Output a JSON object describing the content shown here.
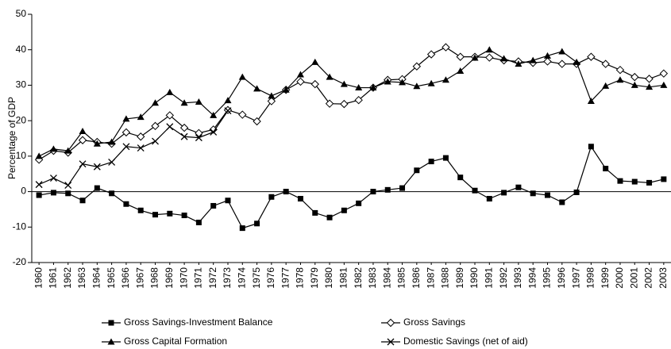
{
  "chart_data": {
    "type": "line",
    "y_label": "Percentage of GDP",
    "categories": [
      "1960",
      "1961",
      "1962",
      "1963",
      "1964",
      "1965",
      "1966",
      "1967",
      "1968",
      "1969",
      "1970",
      "1971",
      "1972",
      "1973",
      "1974",
      "1975",
      "1976",
      "1977",
      "1978",
      "1979",
      "1980",
      "1981",
      "1982",
      "1983",
      "1984",
      "1985",
      "1986",
      "1987",
      "1988",
      "1989",
      "1990",
      "1991",
      "1992",
      "1993",
      "1994",
      "1995",
      "1996",
      "1997",
      "1998",
      "1999",
      "2000",
      "2001",
      "2002",
      "2003"
    ],
    "series": [
      {
        "name": "Gross Savings-Investment Balance",
        "color": "#000000",
        "marker": "square",
        "values": [
          -1,
          -0.3,
          -0.5,
          -2.5,
          1,
          -0.5,
          -3.5,
          -5.3,
          -6.5,
          -6.2,
          -6.7,
          -8.7,
          -4,
          -2.5,
          -10.3,
          -9,
          -1.5,
          0,
          -2,
          -6,
          -7.3,
          -5.3,
          -3.3,
          0,
          0.5,
          1,
          6,
          8.5,
          9.5,
          4,
          0.3,
          -2,
          -0.3,
          1.2,
          -0.5,
          -1,
          -3,
          -0.2,
          12.7,
          6.5,
          3,
          2.8,
          2.5,
          3.5
        ]
      },
      {
        "name": "Gross Savings",
        "color": "#000000",
        "marker": "diamond",
        "values": [
          9,
          11.5,
          11,
          14.5,
          14,
          13.5,
          16.7,
          15.5,
          18.5,
          21.5,
          18,
          16.5,
          17.5,
          23,
          21.7,
          19.8,
          25.5,
          28.7,
          31,
          30.3,
          24.8,
          24.7,
          25.8,
          29.3,
          31.5,
          31.7,
          35.3,
          38.7,
          40.7,
          38,
          38,
          37.8,
          37,
          36.7,
          36.3,
          36.7,
          36,
          36,
          38,
          36,
          34.3,
          32.3,
          31.8,
          33.3
        ]
      },
      {
        "name": "Gross Capital Formation",
        "color": "#000000",
        "marker": "triangle",
        "values": [
          10,
          12,
          11.5,
          17,
          13.5,
          14,
          20.5,
          21,
          25,
          28,
          25,
          25.3,
          21.5,
          25.7,
          32.3,
          29,
          27,
          28.7,
          33,
          36.5,
          32.3,
          30.3,
          29.3,
          29.3,
          31,
          30.8,
          29.7,
          30.5,
          31.5,
          34,
          37.7,
          40,
          37.5,
          36,
          37,
          38.3,
          39.5,
          36.5,
          25.5,
          29.8,
          31.5,
          30,
          29.5,
          30
        ]
      },
      {
        "name": "Domestic Savings (net of aid)",
        "color": "#000000",
        "marker": "cross",
        "values": [
          2,
          3.8,
          1.8,
          7.8,
          7,
          8.3,
          12.7,
          12.3,
          14.2,
          18.3,
          15.5,
          15.2,
          16.8,
          22.8,
          null,
          null,
          null,
          null,
          null,
          null,
          null,
          null,
          null,
          null,
          null,
          null,
          null,
          null,
          null,
          null,
          null,
          null,
          null,
          null,
          null,
          null,
          null,
          null,
          null,
          null,
          null,
          null,
          null,
          null
        ]
      }
    ],
    "ylim": [
      -20,
      50
    ],
    "yticks": [
      -20,
      -10,
      0,
      10,
      20,
      30,
      40,
      50
    ],
    "zero_line": true,
    "grid": false,
    "legend": "bottom"
  }
}
